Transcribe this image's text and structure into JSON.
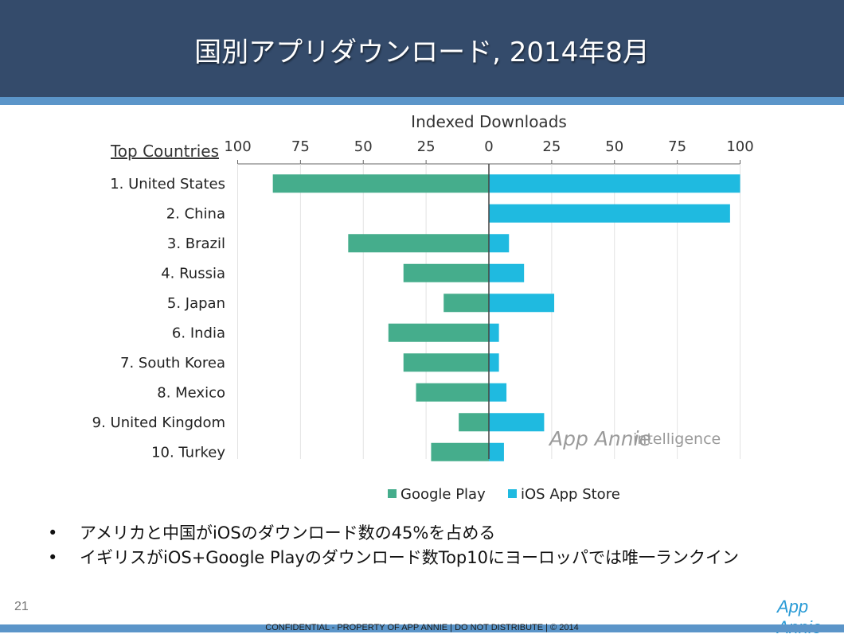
{
  "slide": {
    "title": "国別アプリダウンロード, 2014年8月",
    "number": "21",
    "footer": "CONFIDENTIAL - PROPERTY OF APP ANNIE  |  DO NOT DISTRIBUTE  |  © 2014",
    "corner_logo": "App Annie",
    "watermark_brand": "App Annie",
    "watermark_suffix": "intelligence",
    "bullets": [
      "アメリカと中国がiOSのダウンロード数の45%を占める",
      "イギリスがiOS+Google Playのダウンロード数Top10にヨーロッパでは唯一ランクイン"
    ],
    "colors": {
      "header": "#344b6b",
      "stripe": "#5b95c9",
      "google_play": "#45ad8c",
      "ios": "#1fbae0"
    }
  },
  "chart_data": {
    "type": "bar",
    "title": "Indexed Downloads",
    "category_header": "Top Countries",
    "categories": [
      "1. United States",
      "2. China",
      "3. Brazil",
      "4. Russia",
      "5. Japan",
      "6. India",
      "7. South Korea",
      "8. Mexico",
      "9. United Kingdom",
      "10. Turkey"
    ],
    "series": [
      {
        "name": "Google Play",
        "direction": "left",
        "values": [
          86,
          0,
          56,
          34,
          18,
          40,
          34,
          29,
          12,
          23
        ]
      },
      {
        "name": "iOS App Store",
        "direction": "right",
        "values": [
          100,
          96,
          8,
          14,
          26,
          4,
          4,
          7,
          22,
          6
        ]
      }
    ],
    "left_ticks": [
      "100",
      "75",
      "50",
      "25"
    ],
    "center_tick": "0",
    "right_ticks": [
      "25",
      "50",
      "75",
      "100"
    ],
    "xlim": [
      -100,
      100
    ],
    "grid": true,
    "legend_position": "bottom"
  }
}
